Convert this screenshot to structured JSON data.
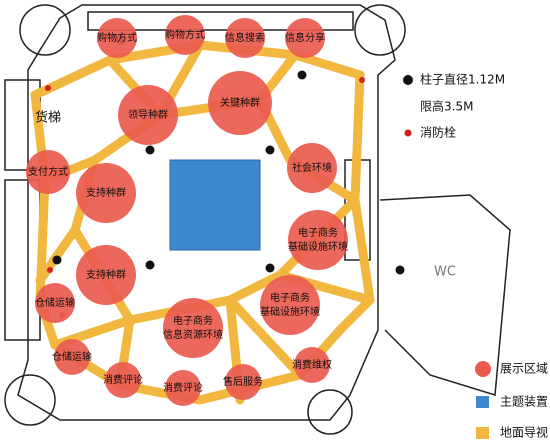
{
  "zones": [
    [
      "购物方式"
    ],
    [
      "购物方式"
    ],
    [
      "信息搜索"
    ],
    [
      "信息分享"
    ],
    [
      "关键种群"
    ],
    [
      "领导种群"
    ],
    [
      "支付方式"
    ],
    [
      "支持种群"
    ],
    [
      "社会环境"
    ],
    [
      "电子商务",
      "基础设施环境"
    ],
    [
      "支持种群"
    ],
    [
      "电子商务",
      "基础设施环境"
    ],
    [
      "电子商务",
      "信息资源环境"
    ],
    [
      "仓储运输"
    ],
    [
      "仓储运输"
    ],
    [
      "消费评论"
    ],
    [
      "消费评论"
    ],
    [
      "售后服务"
    ],
    [
      "消费维权"
    ]
  ],
  "labels": {
    "elevator": "货梯",
    "wc": "WC"
  },
  "legend": {
    "pillar": "柱子直径1.12M",
    "height": "限高3.5M",
    "hydrant": "消防栓",
    "display": "展示区域",
    "installation": "主题装置",
    "guide": "地面导视"
  }
}
